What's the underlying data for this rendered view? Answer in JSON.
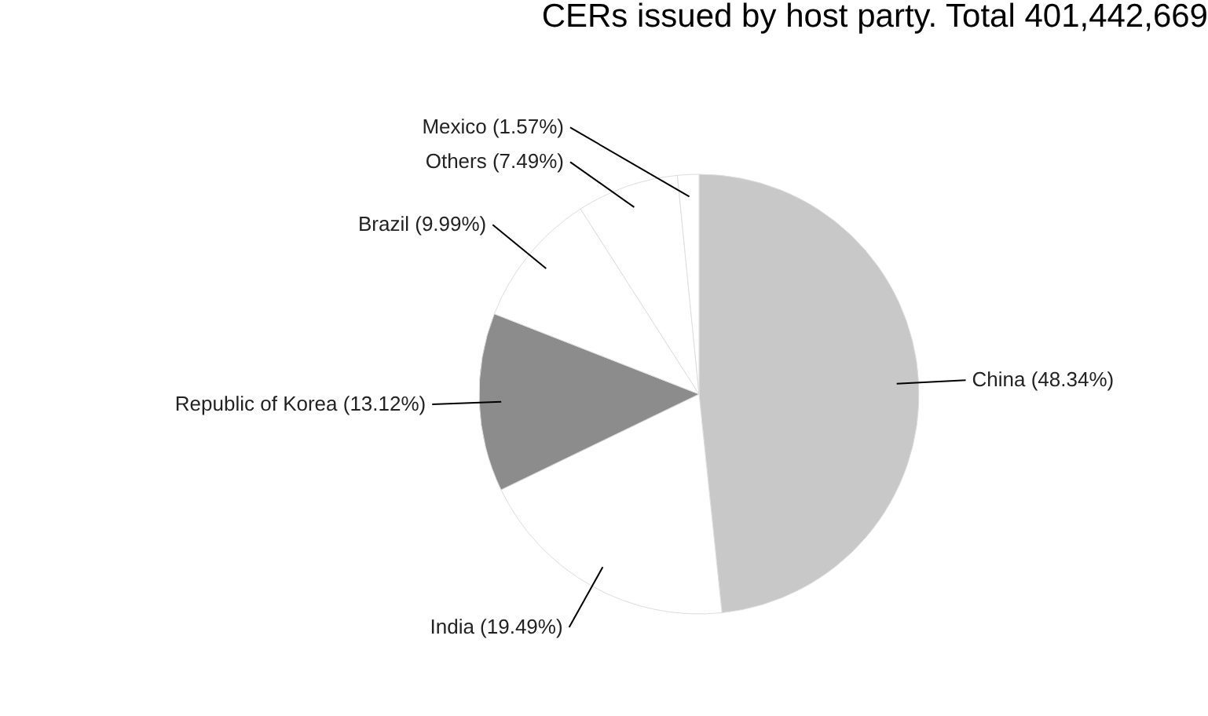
{
  "chart_data": {
    "type": "pie",
    "title": "CERs issued by host party. Total 401,442,669",
    "categories": [
      "China",
      "India",
      "Republic of Korea",
      "Brazil",
      "Others",
      "Mexico"
    ],
    "values": [
      48.34,
      19.49,
      13.12,
      9.99,
      7.49,
      1.57
    ],
    "value_labels": [
      "(48.34%)",
      "(19.49%)",
      "(13.12%)",
      "(9.99%)",
      "(7.49%)",
      "(1.57%)"
    ],
    "colors": [
      "#c8c8c8",
      "#ffffff",
      "#8c8c8c",
      "#ffffff",
      "#ffffff",
      "#ffffff"
    ],
    "legend": false
  }
}
